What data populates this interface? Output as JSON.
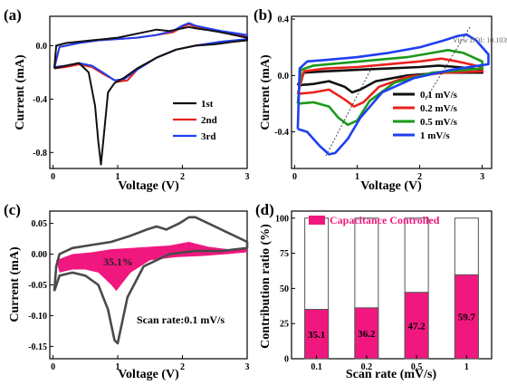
{
  "colors": {
    "black": "#111111",
    "red": "#e8231f",
    "blue": "#1f3ff2",
    "green": "#1a9a1a",
    "pink": "#f0187f",
    "gray": "#4a4a4a",
    "bar_edge": "#555555"
  },
  "watermark": "View DOI: 10.1039/",
  "chart_data": [
    {
      "panel": "(a)",
      "type": "line",
      "xlabel": "Voltage (V)",
      "ylabel": "Current (mA)",
      "xlim": [
        -0.05,
        3.0
      ],
      "ylim": [
        -0.92,
        0.22
      ],
      "xticks": [
        "0",
        "1",
        "2",
        "3"
      ],
      "yticks": [
        "-0.8",
        "-0.4",
        "0.0"
      ],
      "ytick_values": [
        -0.8,
        -0.4,
        0.0
      ],
      "legend_position": "right",
      "series": [
        {
          "name": "1st",
          "color": "#111111",
          "cathodic": [
            [
              0.02,
              -0.17
            ],
            [
              0.2,
              -0.15
            ],
            [
              0.4,
              -0.13
            ],
            [
              0.55,
              -0.2
            ],
            [
              0.65,
              -0.45
            ],
            [
              0.7,
              -0.72
            ],
            [
              0.74,
              -0.89
            ],
            [
              0.78,
              -0.7
            ],
            [
              0.85,
              -0.35
            ],
            [
              0.95,
              -0.28
            ],
            [
              1.1,
              -0.24
            ],
            [
              1.3,
              -0.17
            ],
            [
              1.6,
              -0.09
            ],
            [
              1.9,
              -0.03
            ],
            [
              2.2,
              0.0
            ],
            [
              2.5,
              0.01
            ],
            [
              2.8,
              0.03
            ],
            [
              3.0,
              0.04
            ]
          ],
          "anodic": [
            [
              3.0,
              0.06
            ],
            [
              2.6,
              0.1
            ],
            [
              2.35,
              0.12
            ],
            [
              2.2,
              0.13
            ],
            [
              2.1,
              0.14
            ],
            [
              2.0,
              0.13
            ],
            [
              1.8,
              0.11
            ],
            [
              1.6,
              0.12
            ],
            [
              1.4,
              0.1
            ],
            [
              1.2,
              0.08
            ],
            [
              1.0,
              0.06
            ],
            [
              0.8,
              0.05
            ],
            [
              0.6,
              0.04
            ],
            [
              0.4,
              0.03
            ],
            [
              0.2,
              0.02
            ],
            [
              0.05,
              0.0
            ],
            [
              0.02,
              -0.17
            ]
          ]
        },
        {
          "name": "2nd",
          "color": "#e8231f",
          "cathodic": [
            [
              0.02,
              -0.17
            ],
            [
              0.2,
              -0.16
            ],
            [
              0.4,
              -0.14
            ],
            [
              0.6,
              -0.16
            ],
            [
              0.8,
              -0.22
            ],
            [
              1.0,
              -0.27
            ],
            [
              1.15,
              -0.26
            ],
            [
              1.3,
              -0.18
            ],
            [
              1.6,
              -0.09
            ],
            [
              1.9,
              -0.03
            ],
            [
              2.2,
              0.0
            ],
            [
              2.6,
              0.03
            ],
            [
              3.0,
              0.04
            ]
          ],
          "anodic": [
            [
              3.0,
              0.07
            ],
            [
              2.6,
              0.1
            ],
            [
              2.4,
              0.12
            ],
            [
              2.2,
              0.14
            ],
            [
              2.1,
              0.16
            ],
            [
              2.0,
              0.14
            ],
            [
              1.85,
              0.1
            ],
            [
              1.6,
              0.08
            ],
            [
              1.3,
              0.06
            ],
            [
              1.0,
              0.05
            ],
            [
              0.7,
              0.04
            ],
            [
              0.4,
              0.02
            ],
            [
              0.1,
              -0.01
            ],
            [
              0.02,
              -0.17
            ]
          ]
        },
        {
          "name": "3rd",
          "color": "#1f3ff2",
          "cathodic": [
            [
              0.02,
              -0.16
            ],
            [
              0.2,
              -0.15
            ],
            [
              0.4,
              -0.13
            ],
            [
              0.6,
              -0.15
            ],
            [
              0.8,
              -0.21
            ],
            [
              0.95,
              -0.26
            ],
            [
              1.1,
              -0.25
            ],
            [
              1.3,
              -0.18
            ],
            [
              1.6,
              -0.09
            ],
            [
              1.9,
              -0.03
            ],
            [
              2.2,
              0.0
            ],
            [
              2.6,
              0.03
            ],
            [
              3.0,
              0.05
            ]
          ],
          "anodic": [
            [
              3.0,
              0.08
            ],
            [
              2.6,
              0.11
            ],
            [
              2.4,
              0.13
            ],
            [
              2.2,
              0.15
            ],
            [
              2.1,
              0.17
            ],
            [
              2.0,
              0.15
            ],
            [
              1.85,
              0.11
            ],
            [
              1.6,
              0.08
            ],
            [
              1.3,
              0.06
            ],
            [
              1.0,
              0.05
            ],
            [
              0.7,
              0.04
            ],
            [
              0.4,
              0.02
            ],
            [
              0.1,
              -0.01
            ],
            [
              0.02,
              -0.16
            ]
          ]
        }
      ]
    },
    {
      "panel": "(b)",
      "type": "line",
      "xlabel": "Voltage (V)",
      "ylabel": "Current (mA)",
      "xlim": [
        -0.05,
        3.15
      ],
      "ylim": [
        -0.66,
        0.42
      ],
      "xticks": [
        "0",
        "1",
        "2",
        "3"
      ],
      "yticks": [
        "-0.4",
        "0.0",
        "0.4"
      ],
      "ytick_values": [
        -0.4,
        0.0,
        0.4
      ],
      "legend_position": "bottom-right",
      "series": [
        {
          "name": "0.1 mV/s",
          "color": "#111111",
          "cathodic": [
            [
              0.05,
              -0.07
            ],
            [
              0.3,
              -0.06
            ],
            [
              0.55,
              -0.04
            ],
            [
              0.8,
              -0.08
            ],
            [
              0.92,
              -0.12
            ],
            [
              1.05,
              -0.1
            ],
            [
              1.3,
              -0.04
            ],
            [
              1.8,
              0.0
            ],
            [
              2.4,
              0.02
            ],
            [
              3.0,
              0.02
            ]
          ],
          "anodic": [
            [
              3.0,
              0.04
            ],
            [
              2.6,
              0.06
            ],
            [
              2.3,
              0.07
            ],
            [
              2.0,
              0.06
            ],
            [
              1.5,
              0.05
            ],
            [
              1.0,
              0.04
            ],
            [
              0.5,
              0.03
            ],
            [
              0.15,
              0.02
            ],
            [
              0.05,
              -0.07
            ]
          ]
        },
        {
          "name": "0.2 mV/s",
          "color": "#e8231f",
          "cathodic": [
            [
              0.05,
              -0.13
            ],
            [
              0.3,
              -0.12
            ],
            [
              0.55,
              -0.1
            ],
            [
              0.8,
              -0.17
            ],
            [
              0.95,
              -0.22
            ],
            [
              1.1,
              -0.19
            ],
            [
              1.35,
              -0.08
            ],
            [
              1.8,
              -0.01
            ],
            [
              2.4,
              0.02
            ],
            [
              3.0,
              0.03
            ]
          ],
          "anodic": [
            [
              3.0,
              0.06
            ],
            [
              2.6,
              0.1
            ],
            [
              2.35,
              0.12
            ],
            [
              2.0,
              0.1
            ],
            [
              1.5,
              0.08
            ],
            [
              1.0,
              0.06
            ],
            [
              0.5,
              0.05
            ],
            [
              0.15,
              0.03
            ],
            [
              0.05,
              -0.13
            ]
          ]
        },
        {
          "name": "0.5 mV/s",
          "color": "#1a9a1a",
          "cathodic": [
            [
              0.05,
              -0.2
            ],
            [
              0.3,
              -0.19
            ],
            [
              0.55,
              -0.22
            ],
            [
              0.7,
              -0.3
            ],
            [
              0.85,
              -0.35
            ],
            [
              1.0,
              -0.32
            ],
            [
              1.2,
              -0.18
            ],
            [
              1.6,
              -0.05
            ],
            [
              2.2,
              0.02
            ],
            [
              3.0,
              0.05
            ]
          ],
          "anodic": [
            [
              3.0,
              0.1
            ],
            [
              2.7,
              0.16
            ],
            [
              2.45,
              0.18
            ],
            [
              2.2,
              0.16
            ],
            [
              1.8,
              0.13
            ],
            [
              1.3,
              0.11
            ],
            [
              0.8,
              0.09
            ],
            [
              0.3,
              0.07
            ],
            [
              0.1,
              0.04
            ],
            [
              0.05,
              -0.2
            ]
          ]
        },
        {
          "name": "1 mV/s",
          "color": "#1f3ff2",
          "cathodic": [
            [
              0.05,
              -0.38
            ],
            [
              0.2,
              -0.4
            ],
            [
              0.4,
              -0.5
            ],
            [
              0.55,
              -0.56
            ],
            [
              0.65,
              -0.55
            ],
            [
              0.85,
              -0.45
            ],
            [
              1.05,
              -0.3
            ],
            [
              1.4,
              -0.12
            ],
            [
              1.9,
              -0.02
            ],
            [
              2.5,
              0.04
            ],
            [
              3.1,
              0.08
            ]
          ],
          "anodic": [
            [
              3.1,
              0.15
            ],
            [
              2.9,
              0.25
            ],
            [
              2.75,
              0.29
            ],
            [
              2.6,
              0.28
            ],
            [
              2.4,
              0.25
            ],
            [
              2.0,
              0.2
            ],
            [
              1.5,
              0.16
            ],
            [
              1.0,
              0.13
            ],
            [
              0.5,
              0.11
            ],
            [
              0.2,
              0.1
            ],
            [
              0.08,
              0.05
            ],
            [
              0.05,
              -0.38
            ]
          ]
        }
      ]
    },
    {
      "panel": "(c)",
      "type": "area",
      "xlabel": "Voltage (V)",
      "ylabel": "Current (mA)",
      "xlim": [
        -0.05,
        3.0
      ],
      "ylim": [
        -0.17,
        0.07
      ],
      "xticks": [
        "0",
        "1",
        "2",
        "3"
      ],
      "yticks": [
        "-0.15",
        "-0.10",
        "-0.05",
        "0.00",
        "0.05"
      ],
      "ytick_values": [
        -0.15,
        -0.1,
        -0.05,
        0.0,
        0.05
      ],
      "annotation": "35.1%",
      "note": "Scan rate:0.1 mV/s",
      "cv_curve": {
        "cathodic": [
          [
            0.02,
            -0.06
          ],
          [
            0.1,
            -0.035
          ],
          [
            0.3,
            -0.03
          ],
          [
            0.5,
            -0.035
          ],
          [
            0.7,
            -0.05
          ],
          [
            0.85,
            -0.09
          ],
          [
            0.95,
            -0.14
          ],
          [
            1.0,
            -0.145
          ],
          [
            1.05,
            -0.12
          ],
          [
            1.15,
            -0.07
          ],
          [
            1.4,
            -0.02
          ],
          [
            1.8,
            0.0
          ],
          [
            2.2,
            0.005
          ],
          [
            2.6,
            0.005
          ],
          [
            3.0,
            0.01
          ]
        ],
        "anodic": [
          [
            3.0,
            0.02
          ],
          [
            2.7,
            0.035
          ],
          [
            2.4,
            0.05
          ],
          [
            2.2,
            0.06
          ],
          [
            2.1,
            0.06
          ],
          [
            1.95,
            0.05
          ],
          [
            1.75,
            0.04
          ],
          [
            1.6,
            0.045
          ],
          [
            1.45,
            0.04
          ],
          [
            1.2,
            0.03
          ],
          [
            0.9,
            0.02
          ],
          [
            0.6,
            0.015
          ],
          [
            0.3,
            0.01
          ],
          [
            0.1,
            0.0
          ],
          [
            0.05,
            -0.02
          ],
          [
            0.02,
            -0.06
          ]
        ]
      },
      "capacitive_area": {
        "top": [
          [
            0.05,
            -0.01
          ],
          [
            0.3,
            0.0
          ],
          [
            0.6,
            0.003
          ],
          [
            0.9,
            0.008
          ],
          [
            1.2,
            0.01
          ],
          [
            1.5,
            0.012
          ],
          [
            1.8,
            0.014
          ],
          [
            2.1,
            0.02
          ],
          [
            2.4,
            0.012
          ],
          [
            2.7,
            0.008
          ],
          [
            3.0,
            0.008
          ]
        ],
        "bottom": [
          [
            3.0,
            0.003
          ],
          [
            2.7,
            0.0
          ],
          [
            2.3,
            -0.003
          ],
          [
            1.9,
            -0.005
          ],
          [
            1.5,
            -0.01
          ],
          [
            1.2,
            -0.03
          ],
          [
            1.05,
            -0.05
          ],
          [
            0.98,
            -0.06
          ],
          [
            0.9,
            -0.05
          ],
          [
            0.7,
            -0.03
          ],
          [
            0.5,
            -0.025
          ],
          [
            0.3,
            -0.025
          ],
          [
            0.1,
            -0.03
          ],
          [
            0.05,
            -0.01
          ]
        ]
      }
    },
    {
      "panel": "(d)",
      "type": "bar",
      "xlabel": "Scan rate (mV/s)",
      "ylabel": "Contribution ratio (%)",
      "ylim": [
        0,
        105
      ],
      "categories": [
        "0.1",
        "0.2",
        "0.5",
        "1"
      ],
      "values": [
        35.1,
        36.2,
        47.2,
        59.7
      ],
      "value_labels": [
        "35.1",
        "36.2",
        "47.2",
        "59.7"
      ],
      "total": [
        100,
        100,
        100,
        100
      ],
      "yticks": [
        "0",
        "25",
        "50",
        "75",
        "100"
      ],
      "ytick_values": [
        0,
        25,
        50,
        75,
        100
      ],
      "legend": "Capacitance Controlled",
      "legend_position": "top"
    }
  ]
}
